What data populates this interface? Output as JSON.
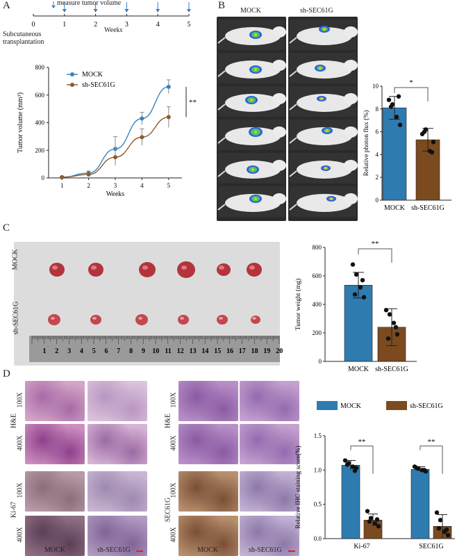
{
  "panels": {
    "a": "A",
    "b": "B",
    "c": "C",
    "d": "D"
  },
  "timeline": {
    "arrow_label": "measure tumor volume",
    "ticks": [
      "0",
      "1",
      "2",
      "3",
      "4",
      "5"
    ],
    "axis_label": "Weeks",
    "start_label_1": "Subcutaneous",
    "start_label_2": "transplantation"
  },
  "b_labels": {
    "mock": "MOCK",
    "sh": "sh-SEC61G"
  },
  "c_labels": {
    "mock": "MOCK",
    "sh": "sh-SEC61G",
    "ruler": [
      "1",
      "2",
      "3",
      "4",
      "5",
      "6",
      "7",
      "8",
      "9",
      "10",
      "11",
      "12",
      "13",
      "14",
      "15",
      "16",
      "17",
      "18",
      "19",
      "20"
    ]
  },
  "d_labels": {
    "he": "H&E",
    "ki67": "Ki-67",
    "sec61g": "SEC61G",
    "x100": "100X",
    "x400": "400X",
    "mock": "MOCK",
    "sh": "sh-SEC61G"
  },
  "colors": {
    "mock": "#2e7bb0",
    "sh": "#7b4a1f",
    "line_mock": "#2e86c1",
    "line_sh": "#8b5a2b"
  },
  "chart_data": [
    {
      "type": "line",
      "id": "tumor-volume",
      "x": [
        1,
        2,
        3,
        4,
        5
      ],
      "series": [
        {
          "name": "MOCK",
          "values": [
            5,
            35,
            210,
            430,
            660
          ],
          "errors": [
            5,
            15,
            90,
            45,
            50
          ]
        },
        {
          "name": "sh-SEC61G",
          "values": [
            5,
            25,
            150,
            295,
            440
          ],
          "errors": [
            5,
            10,
            60,
            60,
            75
          ]
        }
      ],
      "xlabel": "Weeks",
      "ylabel": "Tumor volume (mm³)",
      "ylim": [
        0,
        800
      ],
      "yticks": [
        "0",
        "200",
        "400",
        "600",
        "800"
      ],
      "xticks": [
        "1",
        "2",
        "3",
        "4",
        "5"
      ],
      "significance": "**"
    },
    {
      "type": "bar",
      "id": "photon-flux",
      "categories": [
        "MOCK",
        "sh-SEC61G"
      ],
      "values": [
        8.1,
        5.3
      ],
      "errors": [
        1.0,
        1.0
      ],
      "points": [
        [
          8.8,
          8.4,
          7.3,
          6.6,
          8.2,
          9.1
        ],
        [
          5.8,
          6.2,
          4.3,
          5.1,
          6.0,
          4.2
        ]
      ],
      "ylabel": "Relative photon flux (%)",
      "ylim": [
        0,
        10
      ],
      "yticks": [
        "0",
        "2",
        "4",
        "6",
        "8",
        "10"
      ],
      "significance": "*"
    },
    {
      "type": "bar",
      "id": "tumor-weight",
      "categories": [
        "MOCK",
        "sh-SEC61G"
      ],
      "values": [
        535,
        240
      ],
      "errors": [
        90,
        130
      ],
      "points": [
        [
          680,
          610,
          520,
          450,
          470,
          570
        ],
        [
          360,
          330,
          270,
          190,
          160,
          240
        ]
      ],
      "ylabel": "Tumor weight (mg)",
      "ylim": [
        0,
        800
      ],
      "yticks": [
        "0",
        "200",
        "400",
        "600",
        "800"
      ],
      "significance": "**"
    },
    {
      "type": "bar",
      "id": "ihc-score",
      "categories": [
        "Ki-67",
        "SEC61G"
      ],
      "series": [
        {
          "name": "MOCK",
          "values": [
            1.07,
            1.01
          ],
          "errors": [
            0.07,
            0.04
          ],
          "points": [
            [
              1.14,
              1.1,
              1.05,
              1.03,
              1.08,
              0.99
            ],
            [
              1.05,
              1.02,
              1.0,
              0.98,
              1.03,
              1.0
            ]
          ]
        },
        {
          "name": "sh-SEC61G",
          "values": [
            0.27,
            0.18
          ],
          "errors": [
            0.09,
            0.17
          ],
          "points": [
            [
              0.4,
              0.3,
              0.22,
              0.18,
              0.25,
              0.28
            ],
            [
              0.38,
              0.27,
              0.1,
              0.05,
              0.15,
              0.13
            ]
          ]
        }
      ],
      "ylabel": "Relative IHC staining score(%)",
      "ylim": [
        0,
        1.5
      ],
      "yticks": [
        "0.0",
        "0.5",
        "1.0",
        "1.5"
      ],
      "significance": [
        "**",
        "**"
      ]
    }
  ]
}
